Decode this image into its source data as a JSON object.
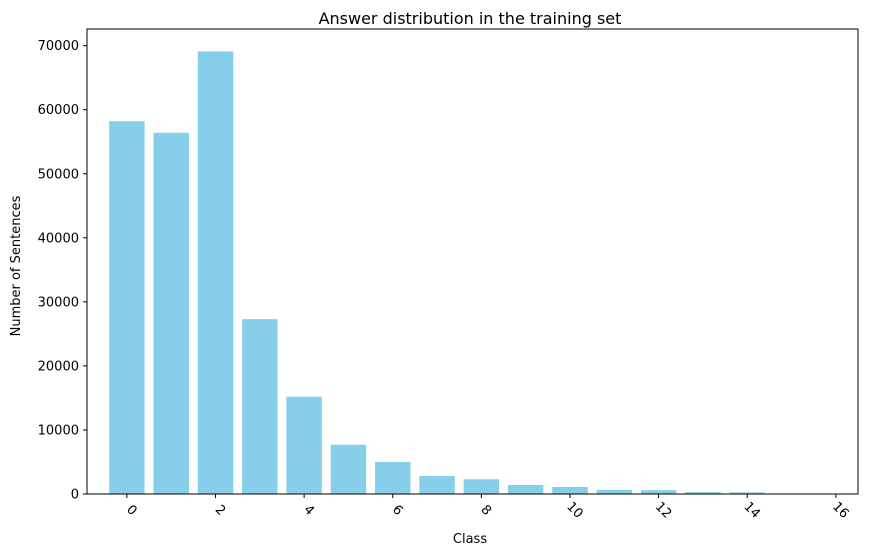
{
  "chart_data": {
    "type": "bar",
    "title": "Answer distribution in the training set",
    "xlabel": "Class",
    "ylabel": "Number of Sentences",
    "x": [
      0,
      1,
      2,
      3,
      4,
      5,
      6,
      7,
      8,
      9,
      10,
      11,
      12,
      13,
      14,
      15,
      16
    ],
    "values": [
      58200,
      56400,
      69100,
      27300,
      15200,
      7700,
      5000,
      2800,
      2300,
      1400,
      1100,
      650,
      600,
      300,
      250,
      60,
      30
    ],
    "xlim": [
      -0.9,
      16.5
    ],
    "ylim": [
      0,
      72600
    ],
    "xticks": [
      0,
      2,
      4,
      6,
      8,
      10,
      12,
      14,
      16
    ],
    "xtick_labels": [
      "0",
      "2",
      "4",
      "6",
      "8",
      "10",
      "12",
      "14",
      "16"
    ],
    "xtick_rotation": 45,
    "yticks": [
      0,
      10000,
      20000,
      30000,
      40000,
      50000,
      60000,
      70000
    ],
    "ytick_labels": [
      "0",
      "10000",
      "20000",
      "30000",
      "40000",
      "50000",
      "60000",
      "70000"
    ],
    "bar_color": "#87CEEB",
    "bar_width": 0.8,
    "grid": false,
    "legend": "none"
  }
}
